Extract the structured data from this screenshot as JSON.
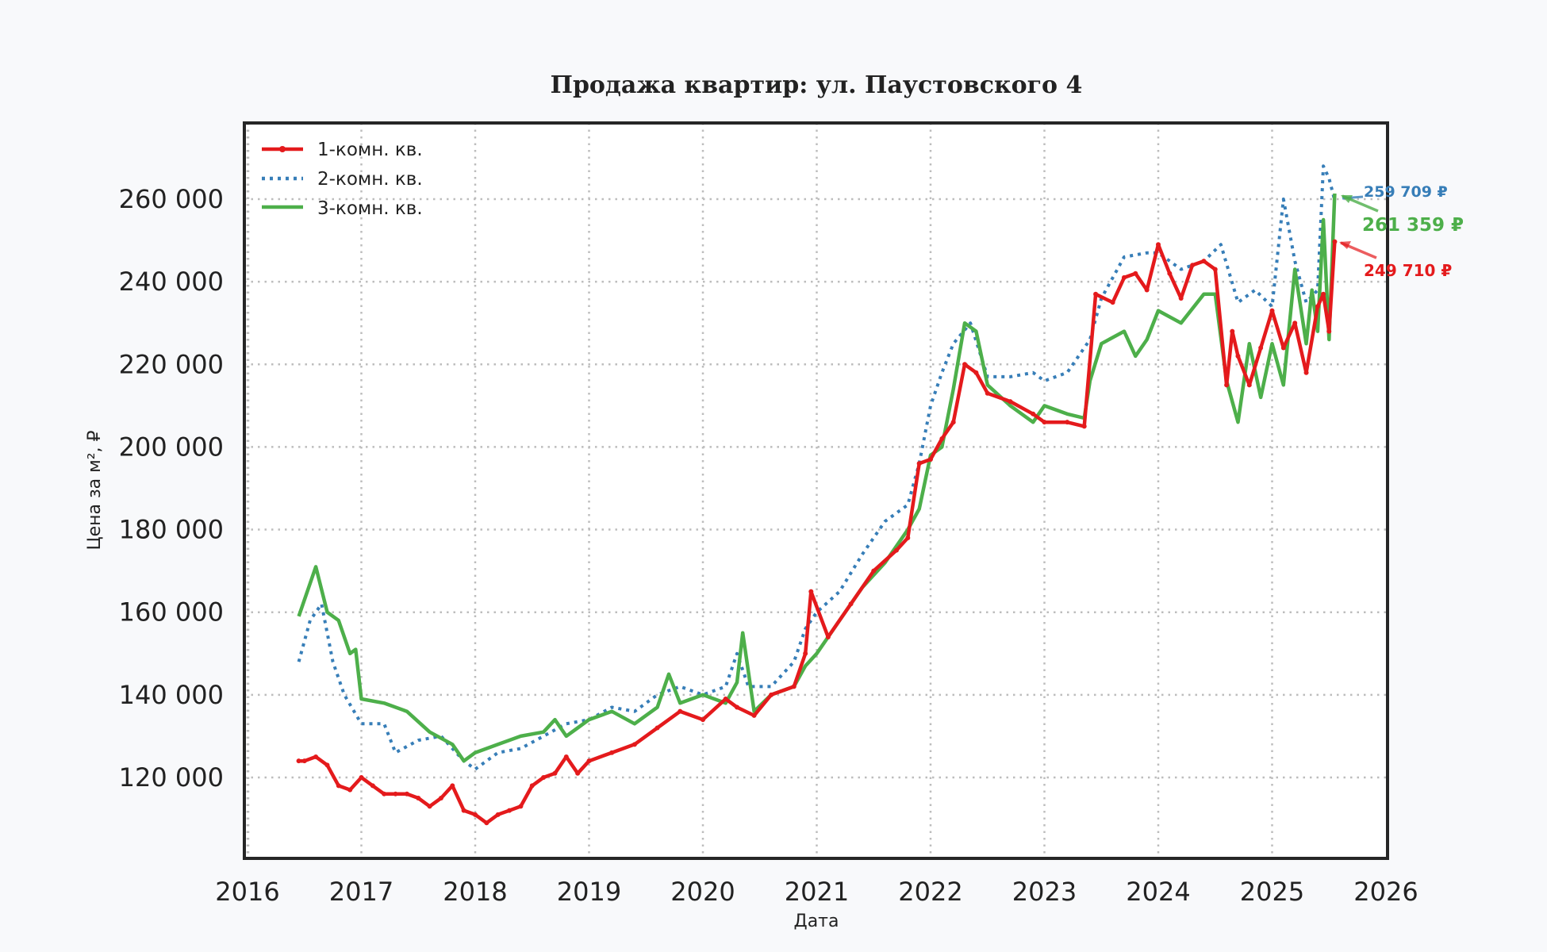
{
  "chart_data": {
    "type": "line",
    "title": "Продажа квартир: ул. Паустовского 4",
    "xlabel": "Дата",
    "ylabel": "Цена за м², ₽",
    "xlim": [
      2016,
      2026
    ],
    "ylim": [
      100000,
      278000
    ],
    "x_ticks": [
      "2016",
      "2017",
      "2018",
      "2019",
      "2020",
      "2021",
      "2022",
      "2023",
      "2024",
      "2025",
      "2026"
    ],
    "y_ticks": [
      {
        "value": 120000,
        "label": "120 000"
      },
      {
        "value": 140000,
        "label": "140 000"
      },
      {
        "value": 160000,
        "label": "160 000"
      },
      {
        "value": 180000,
        "label": "180 000"
      },
      {
        "value": 200000,
        "label": "200 000"
      },
      {
        "value": 220000,
        "label": "220 000"
      },
      {
        "value": 240000,
        "label": "240 000"
      },
      {
        "value": 260000,
        "label": "260 000"
      }
    ],
    "grid": true,
    "legend_position": "upper left",
    "series": [
      {
        "name": "1-комн. кв.",
        "color": "#e41a1c",
        "style": "solid-marker",
        "x": [
          2016.45,
          2016.5,
          2016.6,
          2016.7,
          2016.8,
          2016.9,
          2017.0,
          2017.1,
          2017.2,
          2017.3,
          2017.4,
          2017.5,
          2017.6,
          2017.7,
          2017.8,
          2017.9,
          2018.0,
          2018.1,
          2018.2,
          2018.3,
          2018.4,
          2018.5,
          2018.6,
          2018.7,
          2018.8,
          2018.9,
          2019.0,
          2019.2,
          2019.4,
          2019.6,
          2019.8,
          2020.0,
          2020.2,
          2020.3,
          2020.45,
          2020.6,
          2020.8,
          2020.9,
          2020.95,
          2021.1,
          2021.3,
          2021.5,
          2021.7,
          2021.8,
          2021.9,
          2022.0,
          2022.1,
          2022.2,
          2022.3,
          2022.4,
          2022.5,
          2022.7,
          2022.9,
          2023.0,
          2023.2,
          2023.35,
          2023.45,
          2023.6,
          2023.7,
          2023.8,
          2023.9,
          2024.0,
          2024.1,
          2024.2,
          2024.3,
          2024.4,
          2024.5,
          2024.6,
          2024.65,
          2024.7,
          2024.8,
          2024.9,
          2025.0,
          2025.1,
          2025.2,
          2025.3,
          2025.4,
          2025.45,
          2025.5,
          2025.55
        ],
        "values": [
          124000,
          124000,
          125000,
          123000,
          118000,
          117000,
          120000,
          118000,
          116000,
          116000,
          116000,
          115000,
          113000,
          115000,
          118000,
          112000,
          111000,
          109000,
          111000,
          112000,
          113000,
          118000,
          120000,
          121000,
          125000,
          121000,
          124000,
          126000,
          128000,
          132000,
          136000,
          134000,
          139000,
          137000,
          135000,
          140000,
          142000,
          150000,
          165000,
          154000,
          162000,
          170000,
          175000,
          178000,
          196000,
          197000,
          202000,
          206000,
          220000,
          218000,
          213000,
          211000,
          208000,
          206000,
          206000,
          205000,
          237000,
          235000,
          241000,
          242000,
          238000,
          249000,
          242000,
          236000,
          244000,
          245000,
          243000,
          215000,
          228000,
          222000,
          215000,
          224000,
          233000,
          224000,
          230000,
          218000,
          234000,
          237000,
          228000,
          249710
        ]
      },
      {
        "name": "2-комн. кв.",
        "color": "#377eb8",
        "style": "dotted",
        "x": [
          2016.45,
          2016.55,
          2016.65,
          2016.75,
          2016.85,
          2017.0,
          2017.2,
          2017.3,
          2017.5,
          2017.7,
          2017.9,
          2018.0,
          2018.2,
          2018.4,
          2018.6,
          2018.8,
          2019.0,
          2019.2,
          2019.4,
          2019.6,
          2019.8,
          2020.0,
          2020.2,
          2020.3,
          2020.4,
          2020.6,
          2020.8,
          2020.9,
          2021.0,
          2021.2,
          2021.4,
          2021.6,
          2021.8,
          2021.9,
          2022.0,
          2022.1,
          2022.2,
          2022.35,
          2022.5,
          2022.7,
          2022.9,
          2023.0,
          2023.2,
          2023.4,
          2023.5,
          2023.7,
          2023.9,
          2024.0,
          2024.2,
          2024.4,
          2024.55,
          2024.7,
          2024.85,
          2025.0,
          2025.1,
          2025.2,
          2025.3,
          2025.4,
          2025.45,
          2025.5,
          2025.55
        ],
        "values": [
          148000,
          158000,
          162000,
          148000,
          140000,
          133000,
          133000,
          126000,
          129000,
          130000,
          124000,
          122000,
          126000,
          127000,
          130000,
          133000,
          134000,
          137000,
          136000,
          140000,
          142000,
          140000,
          142000,
          150000,
          142000,
          142000,
          148000,
          156000,
          160000,
          165000,
          174000,
          182000,
          186000,
          196000,
          210000,
          218000,
          225000,
          230000,
          217000,
          217000,
          218000,
          216000,
          218000,
          226000,
          236000,
          246000,
          247000,
          247000,
          243000,
          245000,
          249000,
          235000,
          238000,
          234000,
          260000,
          245000,
          235000,
          238000,
          268000,
          265000,
          259709
        ]
      },
      {
        "name": "3-комн. кв.",
        "color": "#4daf4a",
        "style": "solid",
        "x": [
          2016.45,
          2016.55,
          2016.6,
          2016.7,
          2016.8,
          2016.9,
          2016.95,
          2017.0,
          2017.2,
          2017.4,
          2017.6,
          2017.8,
          2017.9,
          2018.0,
          2018.2,
          2018.4,
          2018.6,
          2018.7,
          2018.8,
          2018.9,
          2019.0,
          2019.2,
          2019.4,
          2019.6,
          2019.7,
          2019.8,
          2020.0,
          2020.2,
          2020.3,
          2020.35,
          2020.45,
          2020.6,
          2020.8,
          2020.9,
          2021.0,
          2021.2,
          2021.4,
          2021.6,
          2021.8,
          2021.9,
          2022.0,
          2022.1,
          2022.2,
          2022.3,
          2022.4,
          2022.5,
          2022.7,
          2022.9,
          2023.0,
          2023.2,
          2023.35,
          2023.4,
          2023.5,
          2023.7,
          2023.8,
          2023.9,
          2024.0,
          2024.2,
          2024.4,
          2024.5,
          2024.6,
          2024.7,
          2024.8,
          2024.9,
          2025.0,
          2025.1,
          2025.2,
          2025.3,
          2025.35,
          2025.4,
          2025.45,
          2025.5,
          2025.55
        ],
        "values": [
          159000,
          167000,
          171000,
          160000,
          158000,
          150000,
          151000,
          139000,
          138000,
          136000,
          131000,
          128000,
          124000,
          126000,
          128000,
          130000,
          131000,
          134000,
          130000,
          132000,
          134000,
          136000,
          133000,
          137000,
          145000,
          138000,
          140000,
          138000,
          143000,
          155000,
          136000,
          140000,
          142000,
          147000,
          150000,
          158000,
          166000,
          172000,
          180000,
          185000,
          198000,
          200000,
          214000,
          230000,
          228000,
          215000,
          210000,
          206000,
          210000,
          208000,
          207000,
          216000,
          225000,
          228000,
          222000,
          226000,
          233000,
          230000,
          237000,
          237000,
          216000,
          206000,
          225000,
          212000,
          225000,
          215000,
          243000,
          225000,
          238000,
          228000,
          255000,
          226000,
          261359
        ]
      }
    ],
    "annotations": [
      {
        "text": "259 709 ₽",
        "series": "2-комн. кв.",
        "color": "#377eb8"
      },
      {
        "text": "261 359 ₽",
        "series": "3-комн. кв.",
        "color": "#4daf4a"
      },
      {
        "text": "249 710 ₽",
        "series": "1-комн. кв.",
        "color": "#e41a1c"
      }
    ]
  }
}
